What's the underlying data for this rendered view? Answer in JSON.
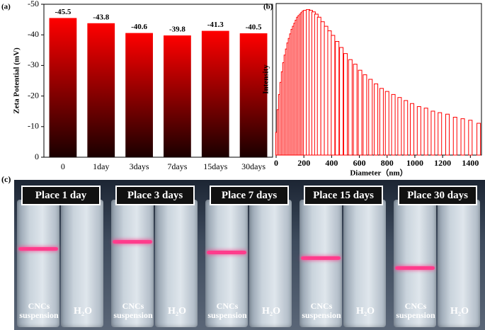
{
  "chart_data": [
    {
      "type": "bar",
      "panel_label": "(a)",
      "y_label": "Zeta Potential (mV)",
      "categories": [
        "0",
        "1day",
        "3days",
        "7days",
        "15days",
        "30days"
      ],
      "values": [
        -45.5,
        -43.8,
        -40.6,
        -39.8,
        -41.3,
        -40.5
      ],
      "color": "#ff0000",
      "ylim": [
        0,
        -50
      ],
      "yticks": [
        0,
        -10,
        -20,
        -30,
        -40,
        -50
      ]
    },
    {
      "type": "bar",
      "panel_label": "(b)",
      "x_label": "Diameter（nm）",
      "y_label": "Intensity",
      "color": "#ff0000",
      "x": [
        10,
        20,
        30,
        40,
        50,
        60,
        70,
        80,
        90,
        100,
        110,
        120,
        130,
        140,
        150,
        160,
        170,
        180,
        190,
        200,
        210,
        230,
        250,
        270,
        290,
        310,
        335,
        360,
        385,
        410,
        440,
        470,
        500,
        535,
        570,
        605,
        640,
        680,
        720,
        760,
        800,
        845,
        890,
        935,
        980,
        1030,
        1080,
        1130,
        1180,
        1235,
        1290,
        1345,
        1400,
        1460
      ],
      "values": [
        15,
        30,
        40,
        48,
        55,
        61,
        66,
        70,
        74,
        77,
        80,
        83,
        85,
        87,
        89,
        91,
        92,
        93,
        94,
        95,
        95.5,
        96,
        95.5,
        94.5,
        93,
        91,
        88,
        85,
        82,
        79,
        75,
        71,
        67,
        63,
        60,
        56,
        53,
        50,
        47,
        44,
        42,
        40,
        38,
        36,
        34,
        32,
        31,
        29,
        28,
        27,
        25,
        24,
        23,
        21
      ],
      "xlim": [
        0,
        1480
      ],
      "xticks": [
        0,
        200,
        400,
        600,
        800,
        1000,
        1200,
        1400
      ],
      "ylim": [
        0,
        100
      ]
    }
  ],
  "photo": {
    "panel_label": "(c)",
    "panels": [
      {
        "caption": "Place 1 day",
        "left": "CNCs suspension",
        "right": "H₂O"
      },
      {
        "caption": "Place 3 days",
        "left": "CNCs suspension",
        "right": "H₂O"
      },
      {
        "caption": "Place 7 days",
        "left": "CNCs suspension",
        "right": "H₂O"
      },
      {
        "caption": "Place 15 days",
        "left": "CNCs suspension",
        "right": "H₂O"
      },
      {
        "caption": "Place 30 days",
        "left": "CNCs suspension",
        "right": "H₂O"
      }
    ]
  }
}
